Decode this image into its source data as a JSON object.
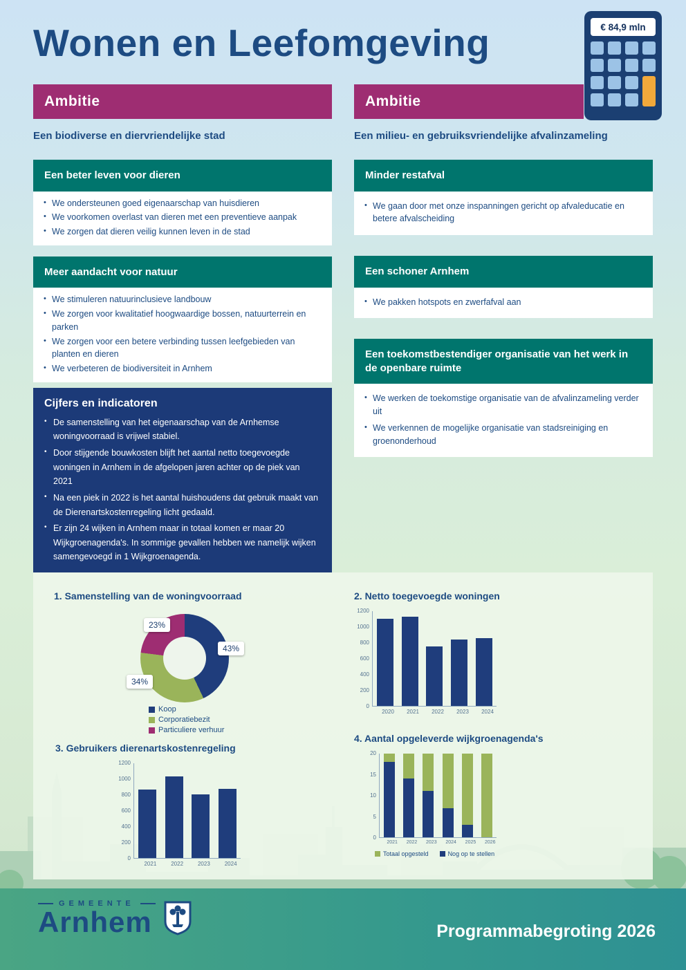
{
  "page": {
    "title": "Wonen en Leefomgeving",
    "budget_badge": "€ 84,9 mln",
    "footer_title": "Programmabegroting 2026",
    "logo_top": "GEMEENTE",
    "logo_name": "Arnhem"
  },
  "left_column": {
    "ambition_label": "Ambitie",
    "ambition_subtitle": "Een biodiverse en diervriendelijke stad",
    "sections": [
      {
        "title": "Een beter leven voor dieren",
        "bullets": [
          "We ondersteunen goed eigenaarschap van huisdieren",
          "We voorkomen overlast van dieren met een preventieve aanpak",
          "We zorgen dat dieren veilig kunnen leven in de stad"
        ]
      },
      {
        "title": "Meer aandacht voor natuur",
        "bullets": [
          "We stimuleren natuurinclusieve landbouw",
          "We zorgen voor kwalitatief hoogwaardige bossen, natuurterrein en parken",
          "We zorgen voor een betere verbinding tussen leefgebieden van planten en dieren",
          "We verbeteren de biodiversiteit in Arnhem"
        ]
      }
    ],
    "indicators": {
      "title": "Cijfers en indicatoren",
      "bullets": [
        "De samenstelling van het eigenaarschap van de Arnhemse woningvoorraad is vrijwel stabiel.",
        "Door stijgende bouwkosten blijft het aantal netto toegevoegde woningen in Arnhem in de afgelopen jaren achter op de piek van 2021",
        "Na een piek in 2022 is het aantal huishoudens dat gebruik maakt van de Dierenartskostenregeling licht gedaald.",
        "Er zijn 24 wijken in Arnhem maar in totaal komen er maar 20 Wijkgroenagenda's. In sommige gevallen hebben we namelijk wijken samengevoegd in 1 Wijkgroenagenda."
      ]
    }
  },
  "right_column": {
    "ambition_label": "Ambitie",
    "ambition_subtitle": "Een milieu- en gebruiksvriendelijke afvalinzameling",
    "sections": [
      {
        "title": "Minder restafval",
        "bullets": [
          "We gaan door met onze inspanningen gericht op afvaleducatie en betere afvalscheiding"
        ]
      },
      {
        "title": "Een schoner Arnhem",
        "bullets": [
          "We pakken hotspots en zwerfafval aan"
        ]
      },
      {
        "title": "Een toekomstbestendiger organisatie van het werk in de openbare ruimte",
        "bullets": [
          "We werken de toekomstige organisatie van de afvalinzameling verder uit",
          "We verkennen de mogelijke organisatie van stadsreiniging en groenonderhoud"
        ]
      }
    ]
  },
  "colors": {
    "accent_blue": "#1d4b82",
    "ambition_purple": "#9e2d72",
    "section_teal": "#00756d",
    "indicator_navy": "#1c3a78",
    "chart_blue": "#1f3d7c",
    "chart_green": "#9ab45a",
    "chart_magenta": "#9e2d72"
  },
  "chart_data": [
    {
      "type": "pie",
      "donut": true,
      "title": "1. Samenstelling van de woningvoorraad",
      "labels": [
        "Koop",
        "Corporatiebezit",
        "Particuliere verhuur"
      ],
      "values": [
        43,
        34,
        23
      ],
      "value_labels": [
        "43%",
        "34%",
        "23%"
      ],
      "colors": [
        "#1f3d7c",
        "#9ab45a",
        "#9e2d72"
      ],
      "legend_position": "bottom"
    },
    {
      "type": "bar",
      "title": "2. Netto toegevoegde woningen",
      "categories": [
        "2020",
        "2021",
        "2022",
        "2023",
        "2024"
      ],
      "values": [
        1100,
        1130,
        750,
        840,
        860
      ],
      "ylim": [
        0,
        1200
      ],
      "yticks": [
        0,
        200,
        400,
        600,
        800,
        1000,
        1200
      ],
      "bar_color": "#1f3d7c",
      "grid": false
    },
    {
      "type": "bar",
      "title": "3. Gebruikers dierenartskostenregeling",
      "categories": [
        "2021",
        "2022",
        "2023",
        "2024"
      ],
      "values": [
        870,
        1030,
        810,
        880
      ],
      "ylim": [
        0,
        1200
      ],
      "yticks": [
        0,
        200,
        400,
        600,
        800,
        1000,
        1200
      ],
      "bar_color": "#1f3d7c",
      "grid": false
    },
    {
      "type": "stacked-bar",
      "title": "4. Aantal opgeleverde wijkgroenagenda's",
      "categories": [
        "2021",
        "2022",
        "2023",
        "2024",
        "2025",
        "2026"
      ],
      "series": [
        {
          "name": "Nog op te stellen",
          "color": "#1f3d7c",
          "values": [
            18,
            14,
            11,
            7,
            3,
            0
          ]
        },
        {
          "name": "Totaal opgesteld",
          "color": "#9ab45a",
          "values": [
            2,
            6,
            9,
            13,
            17,
            20
          ]
        }
      ],
      "ylim": [
        0,
        20
      ],
      "yticks": [
        0,
        5,
        10,
        15,
        20
      ],
      "legend": [
        "Totaal opgesteld",
        "Nog op te stellen"
      ],
      "legend_colors": [
        "#9ab45a",
        "#1f3d7c"
      ],
      "legend_position": "bottom"
    }
  ]
}
